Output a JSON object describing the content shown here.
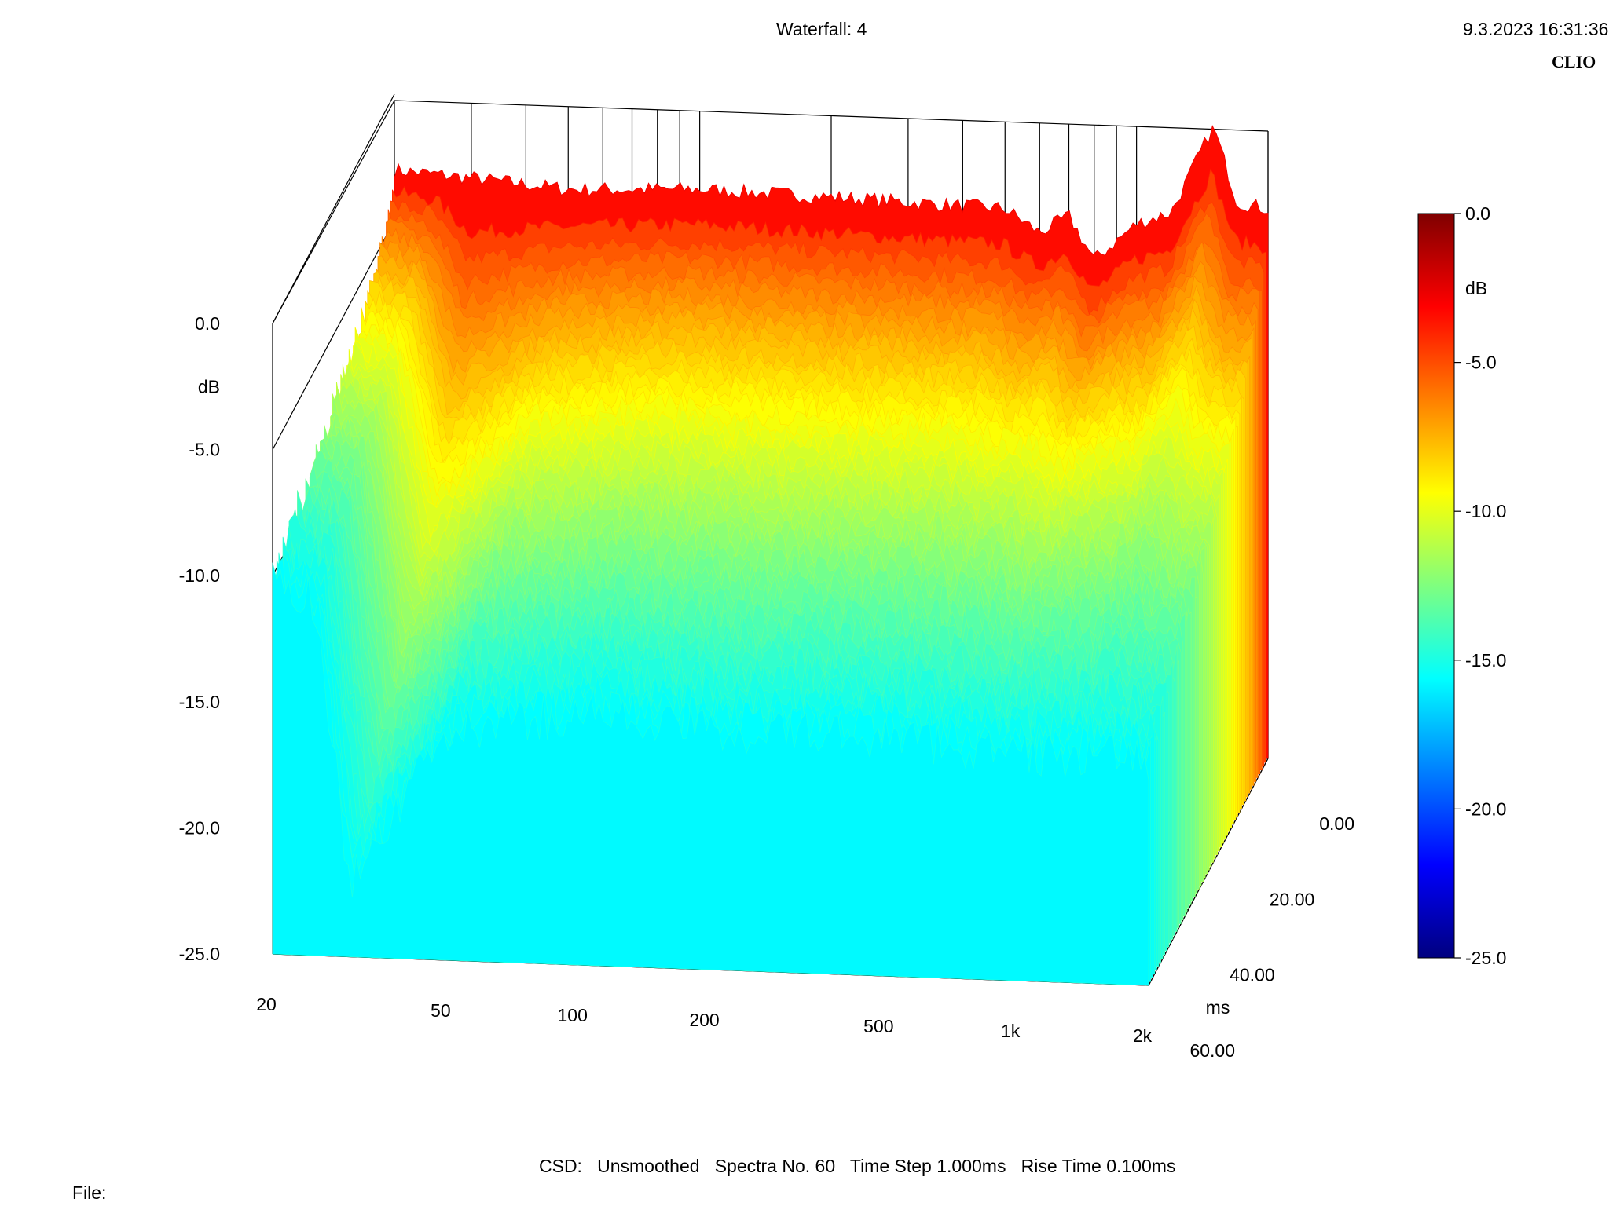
{
  "header": {
    "title": "Waterfall: 4",
    "datetime": "9.3.2023 16:31:36",
    "brand": "CLIO"
  },
  "footer": {
    "settings": "CSD:   Unsmoothed   Spectra No. 60   Time Step 1.000ms   Rise Time 0.100ms",
    "file_label": "File:"
  },
  "colors": {
    "colormap": [
      "#00007f",
      "#0000ff",
      "#007fff",
      "#00ffff",
      "#7fff7f",
      "#ffff00",
      "#ff7f00",
      "#ff0000",
      "#7f0000"
    ],
    "grid": "#000000"
  },
  "chart_data": {
    "type": "waterfall",
    "x_axis": {
      "label": "",
      "scale": "log",
      "range": [
        20,
        2000
      ],
      "ticks": [
        {
          "value": 20,
          "label": "20"
        },
        {
          "value": 50,
          "label": "50"
        },
        {
          "value": 100,
          "label": "100"
        },
        {
          "value": 200,
          "label": "200"
        },
        {
          "value": 500,
          "label": "500"
        },
        {
          "value": 1000,
          "label": "1k"
        },
        {
          "value": 2000,
          "label": "2k"
        }
      ]
    },
    "y_axis": {
      "label": "dB",
      "range": [
        -25,
        0
      ],
      "ticks": [
        {
          "value": 0,
          "label": "0.0"
        },
        {
          "value": -5,
          "label": "-5.0"
        },
        {
          "value": -10,
          "label": "-10.0"
        },
        {
          "value": -15,
          "label": "-15.0"
        },
        {
          "value": -20,
          "label": "-20.0"
        },
        {
          "value": -25,
          "label": "-25.0"
        }
      ]
    },
    "z_axis": {
      "label": "ms",
      "range": [
        0,
        60
      ],
      "ticks": [
        {
          "value": 0,
          "label": "0.00"
        },
        {
          "value": 20,
          "label": "20.00"
        },
        {
          "value": 40,
          "label": "40.00"
        },
        {
          "value": 60,
          "label": "60.00"
        }
      ]
    },
    "colorbar": {
      "label": "dB",
      "range": [
        -25,
        0
      ],
      "ticks": [
        {
          "value": 0,
          "label": "0.0"
        },
        {
          "value": -5,
          "label": "-5.0"
        },
        {
          "value": -10,
          "label": "-10.0"
        },
        {
          "value": -15,
          "label": "-15.0"
        },
        {
          "value": -20,
          "label": "-20.0"
        },
        {
          "value": -25,
          "label": "-25.0"
        }
      ]
    },
    "spectra_count": 60,
    "first_spectrum": {
      "time_ms": 0,
      "freq": [
        20,
        30,
        50,
        100,
        200,
        500,
        600,
        700,
        800,
        1000,
        1200,
        1500,
        1700,
        2000
      ],
      "db": [
        -3.0,
        -3.2,
        -3.5,
        -3.3,
        -3.4,
        -3.6,
        -4.5,
        -3.8,
        -5.5,
        -4.0,
        -3.5,
        0.0,
        -3.0,
        -3.2
      ]
    },
    "last_spectrum": {
      "time_ms": 60,
      "freq": [
        20,
        25,
        30,
        50,
        100,
        200,
        500,
        1000,
        2000
      ],
      "db": [
        -10.0,
        -11.0,
        -22.0,
        -16.0,
        -15.0,
        -15.5,
        -15.5,
        -16.0,
        -16.0
      ]
    }
  }
}
